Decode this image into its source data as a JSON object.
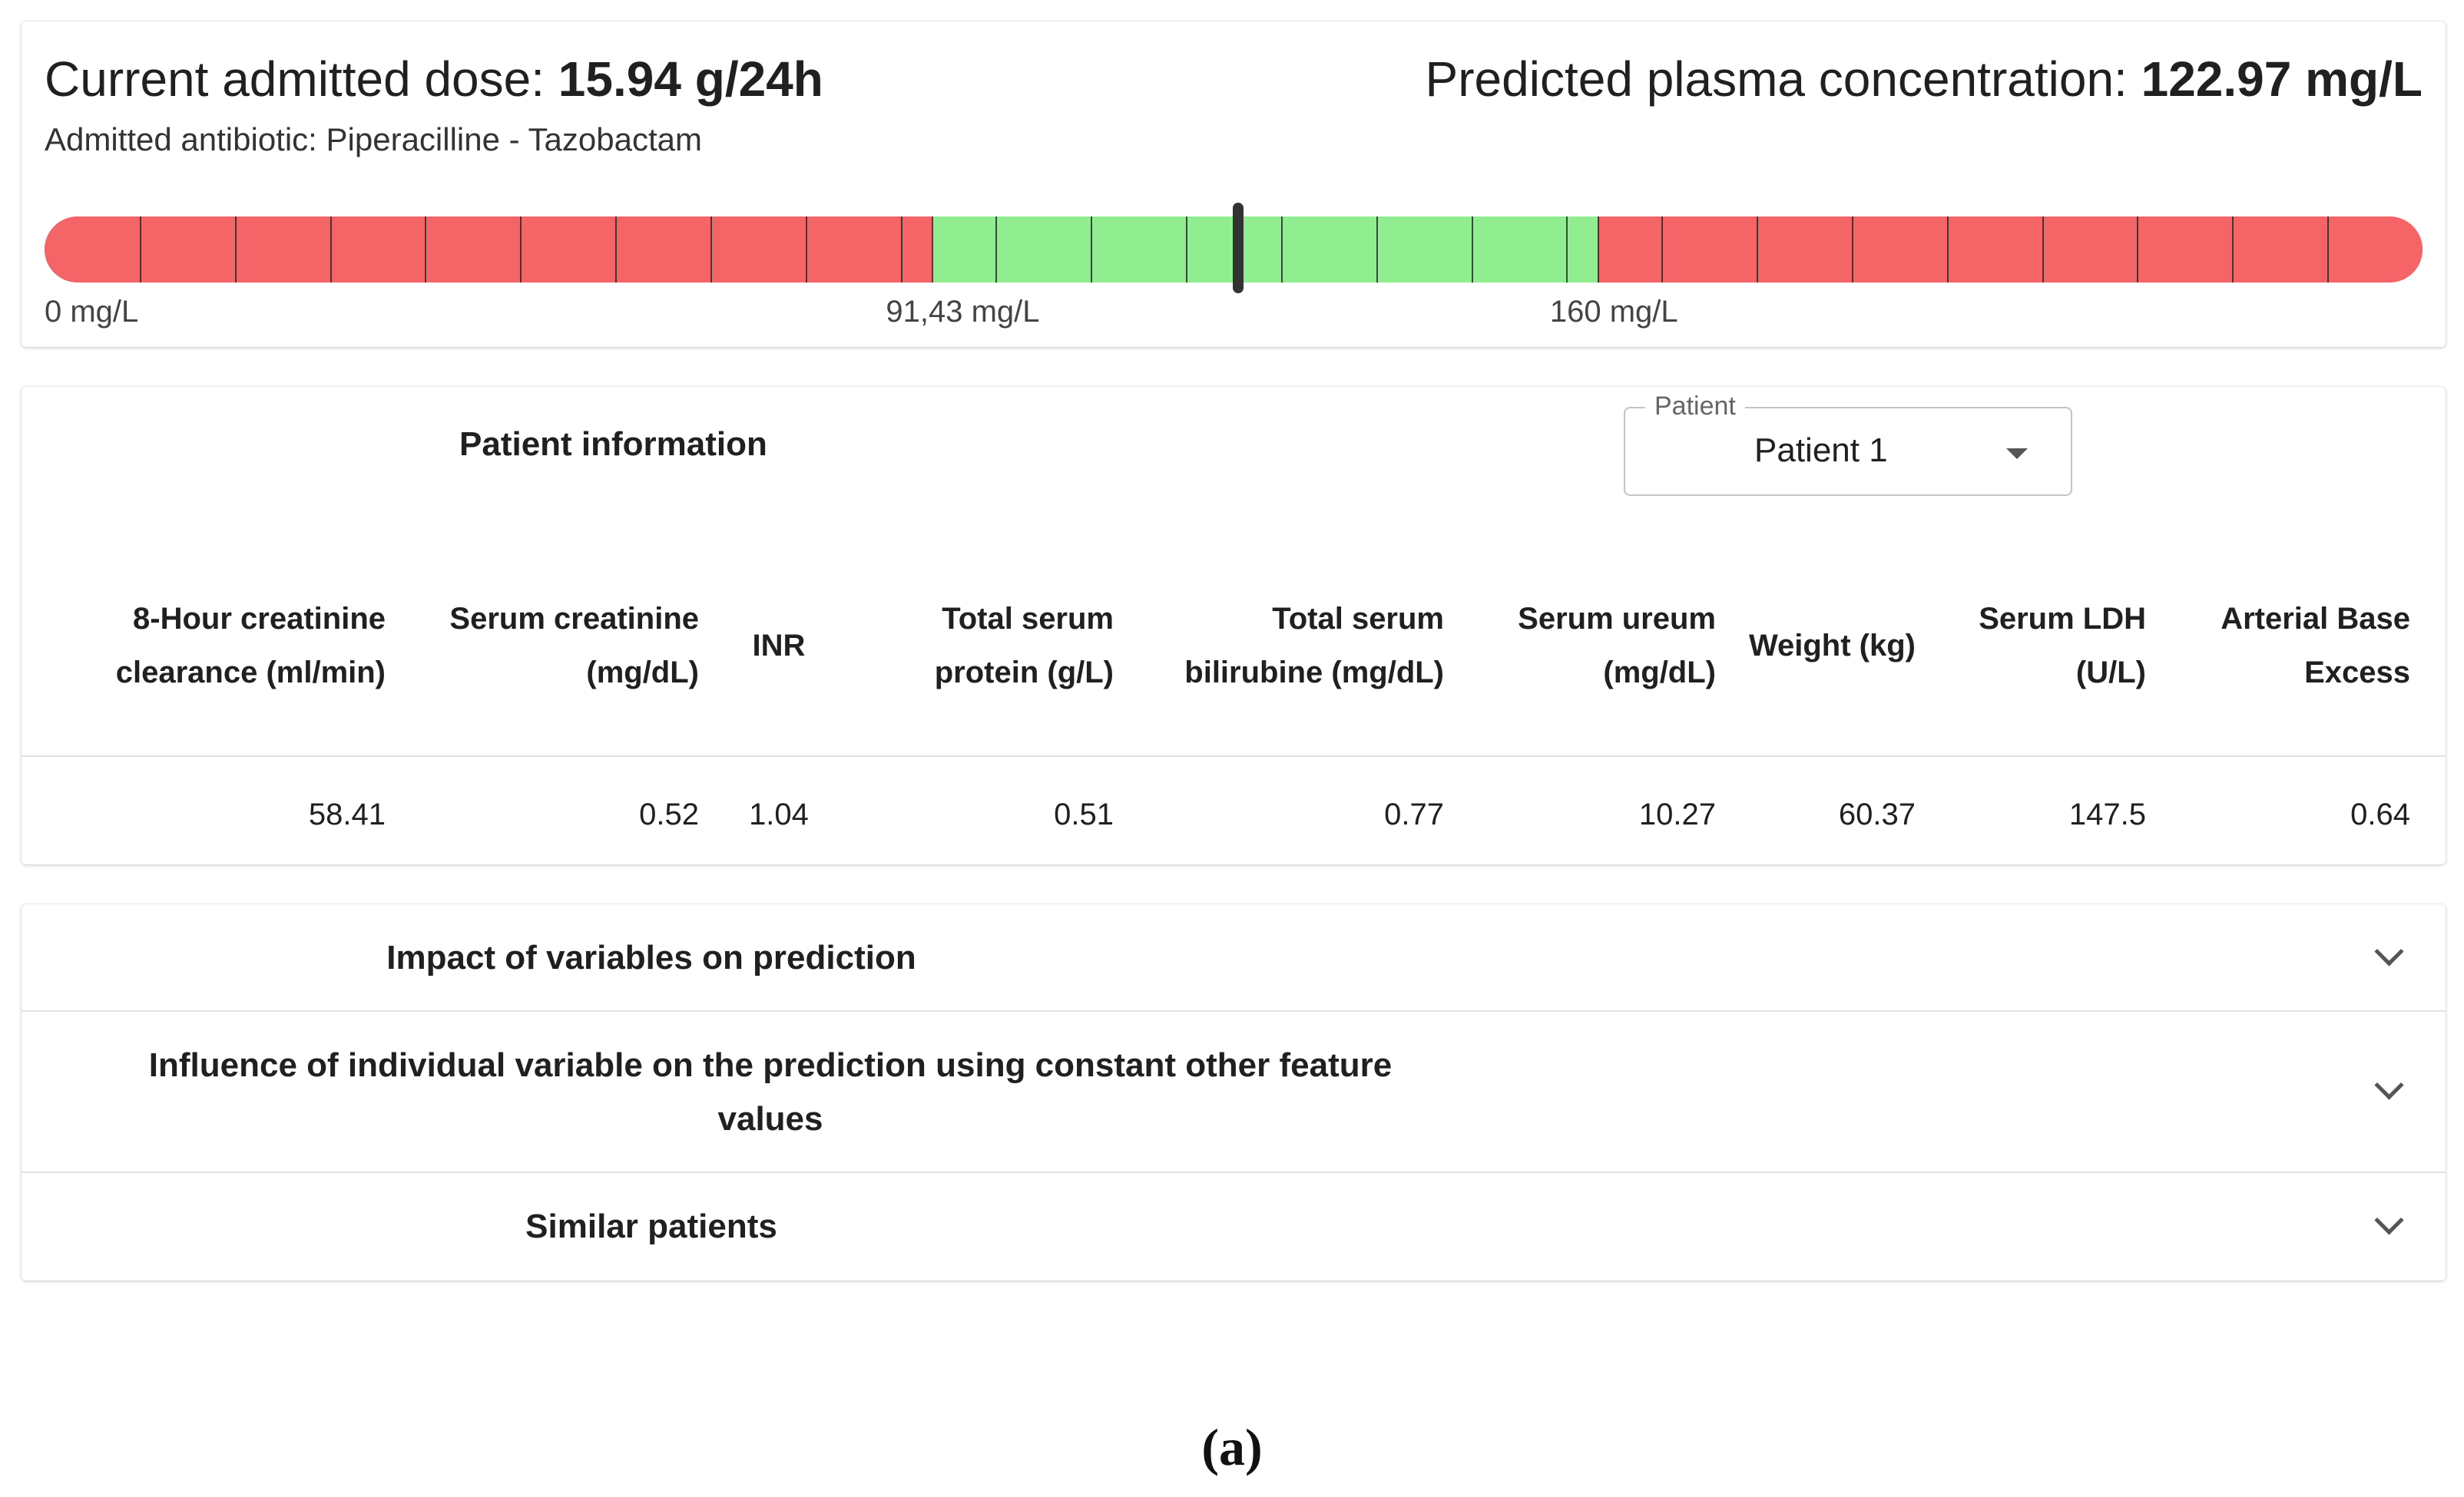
{
  "summary": {
    "dose_label": "Current admitted dose:",
    "dose_value": "15.94 g/24h",
    "concentration_label": "Predicted plasma concentration:",
    "concentration_value": "122.97 mg/L",
    "antibiotic_line": "Admitted antibiotic: Piperacilline - Tazobactam",
    "range_bar": {
      "scale_min_mgL": 0,
      "scale_max_mgL": 245,
      "target_low_mgL": 91.43,
      "target_high_mgL": 160,
      "marker_value_mgL": 122.97,
      "in_range_color": "#90ee90",
      "out_of_range_color": "#f56567",
      "labels": [
        "0 mg/L",
        "91,43 mg/L",
        "160 mg/L"
      ]
    }
  },
  "patient_info": {
    "title": "Patient information",
    "select": {
      "legend": "Patient",
      "value": "Patient 1"
    },
    "columns": [
      "8-Hour creatinine clearance (ml/min)",
      "Serum creatinine (mg/dL)",
      "INR",
      "Total serum protein (g/L)",
      "Total serum bilirubine (mg/dL)",
      "Serum ureum (mg/dL)",
      "Weight (kg)",
      "Serum LDH (U/L)",
      "Arterial Base Excess"
    ],
    "values": [
      "58.41",
      "0.52",
      "1.04",
      "0.51",
      "0.77",
      "10.27",
      "60.37",
      "147.5",
      "0.64"
    ]
  },
  "accordion": [
    {
      "title": "Impact of variables on prediction",
      "icon": "chevron-down-icon"
    },
    {
      "title": "Influence of individual variable on the prediction using constant other feature values",
      "icon": "chevron-down-icon"
    },
    {
      "title": "Similar patients",
      "icon": "chevron-down-icon"
    }
  ],
  "caption": "(a)"
}
